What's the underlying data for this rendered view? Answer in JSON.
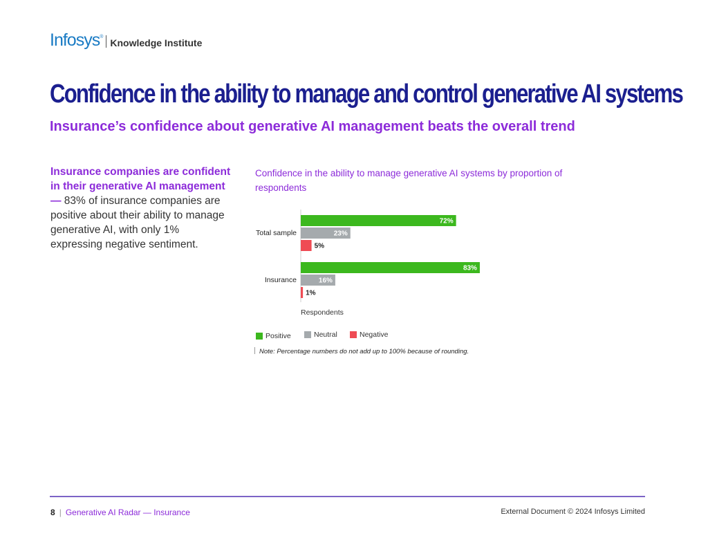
{
  "header": {
    "brand": "Infosys",
    "brand_mark": "®",
    "subbrand": "Knowledge Institute"
  },
  "title": "Confidence in the ability to manage and control generative AI systems",
  "subtitle": "Insurance’s confidence about generative AI management beats the overall trend",
  "sidebar": {
    "highlight": "Insurance companies are confident in their generative AI management —",
    "body": " 83% of insurance companies are positive about their ability to manage generative AI, with only 1% expressing negative sentiment."
  },
  "chart_title": "Confidence in the ability to manage generative AI systems by proportion of respondents",
  "chart_data": {
    "type": "bar",
    "orientation": "horizontal",
    "categories": [
      "Total sample",
      "Insurance"
    ],
    "series": [
      {
        "name": "Positive",
        "values": [
          72,
          83
        ],
        "labels": [
          "72%",
          "83%"
        ]
      },
      {
        "name": "Neutral",
        "values": [
          23,
          16
        ],
        "labels": [
          "23%",
          "16%"
        ]
      },
      {
        "name": "Negative",
        "values": [
          5,
          1
        ],
        "labels": [
          "5%",
          "1%"
        ]
      }
    ],
    "xlabel": "Respondents",
    "ylabel": "",
    "xlim": [
      0,
      100
    ],
    "grid": false,
    "legend_position": "bottom-left"
  },
  "colors": {
    "positive": "#3cb81e",
    "neutral": "#a5aaad",
    "negative": "#ef4b54",
    "title": "#1b1f8f",
    "accent": "#8c2bd9"
  },
  "legend": [
    {
      "label": "Positive",
      "color": "#3cb81e"
    },
    {
      "label": "Neutral",
      "color": "#a5aaad"
    },
    {
      "label": "Negative",
      "color": "#ef4b54"
    }
  ],
  "note": "Note: Percentage numbers do not add up to 100% because of rounding.",
  "footer": {
    "page": "8",
    "separator": "|",
    "document": "Generative AI Radar — Insurance",
    "copyright": "External Document © 2024 Infosys Limited"
  }
}
